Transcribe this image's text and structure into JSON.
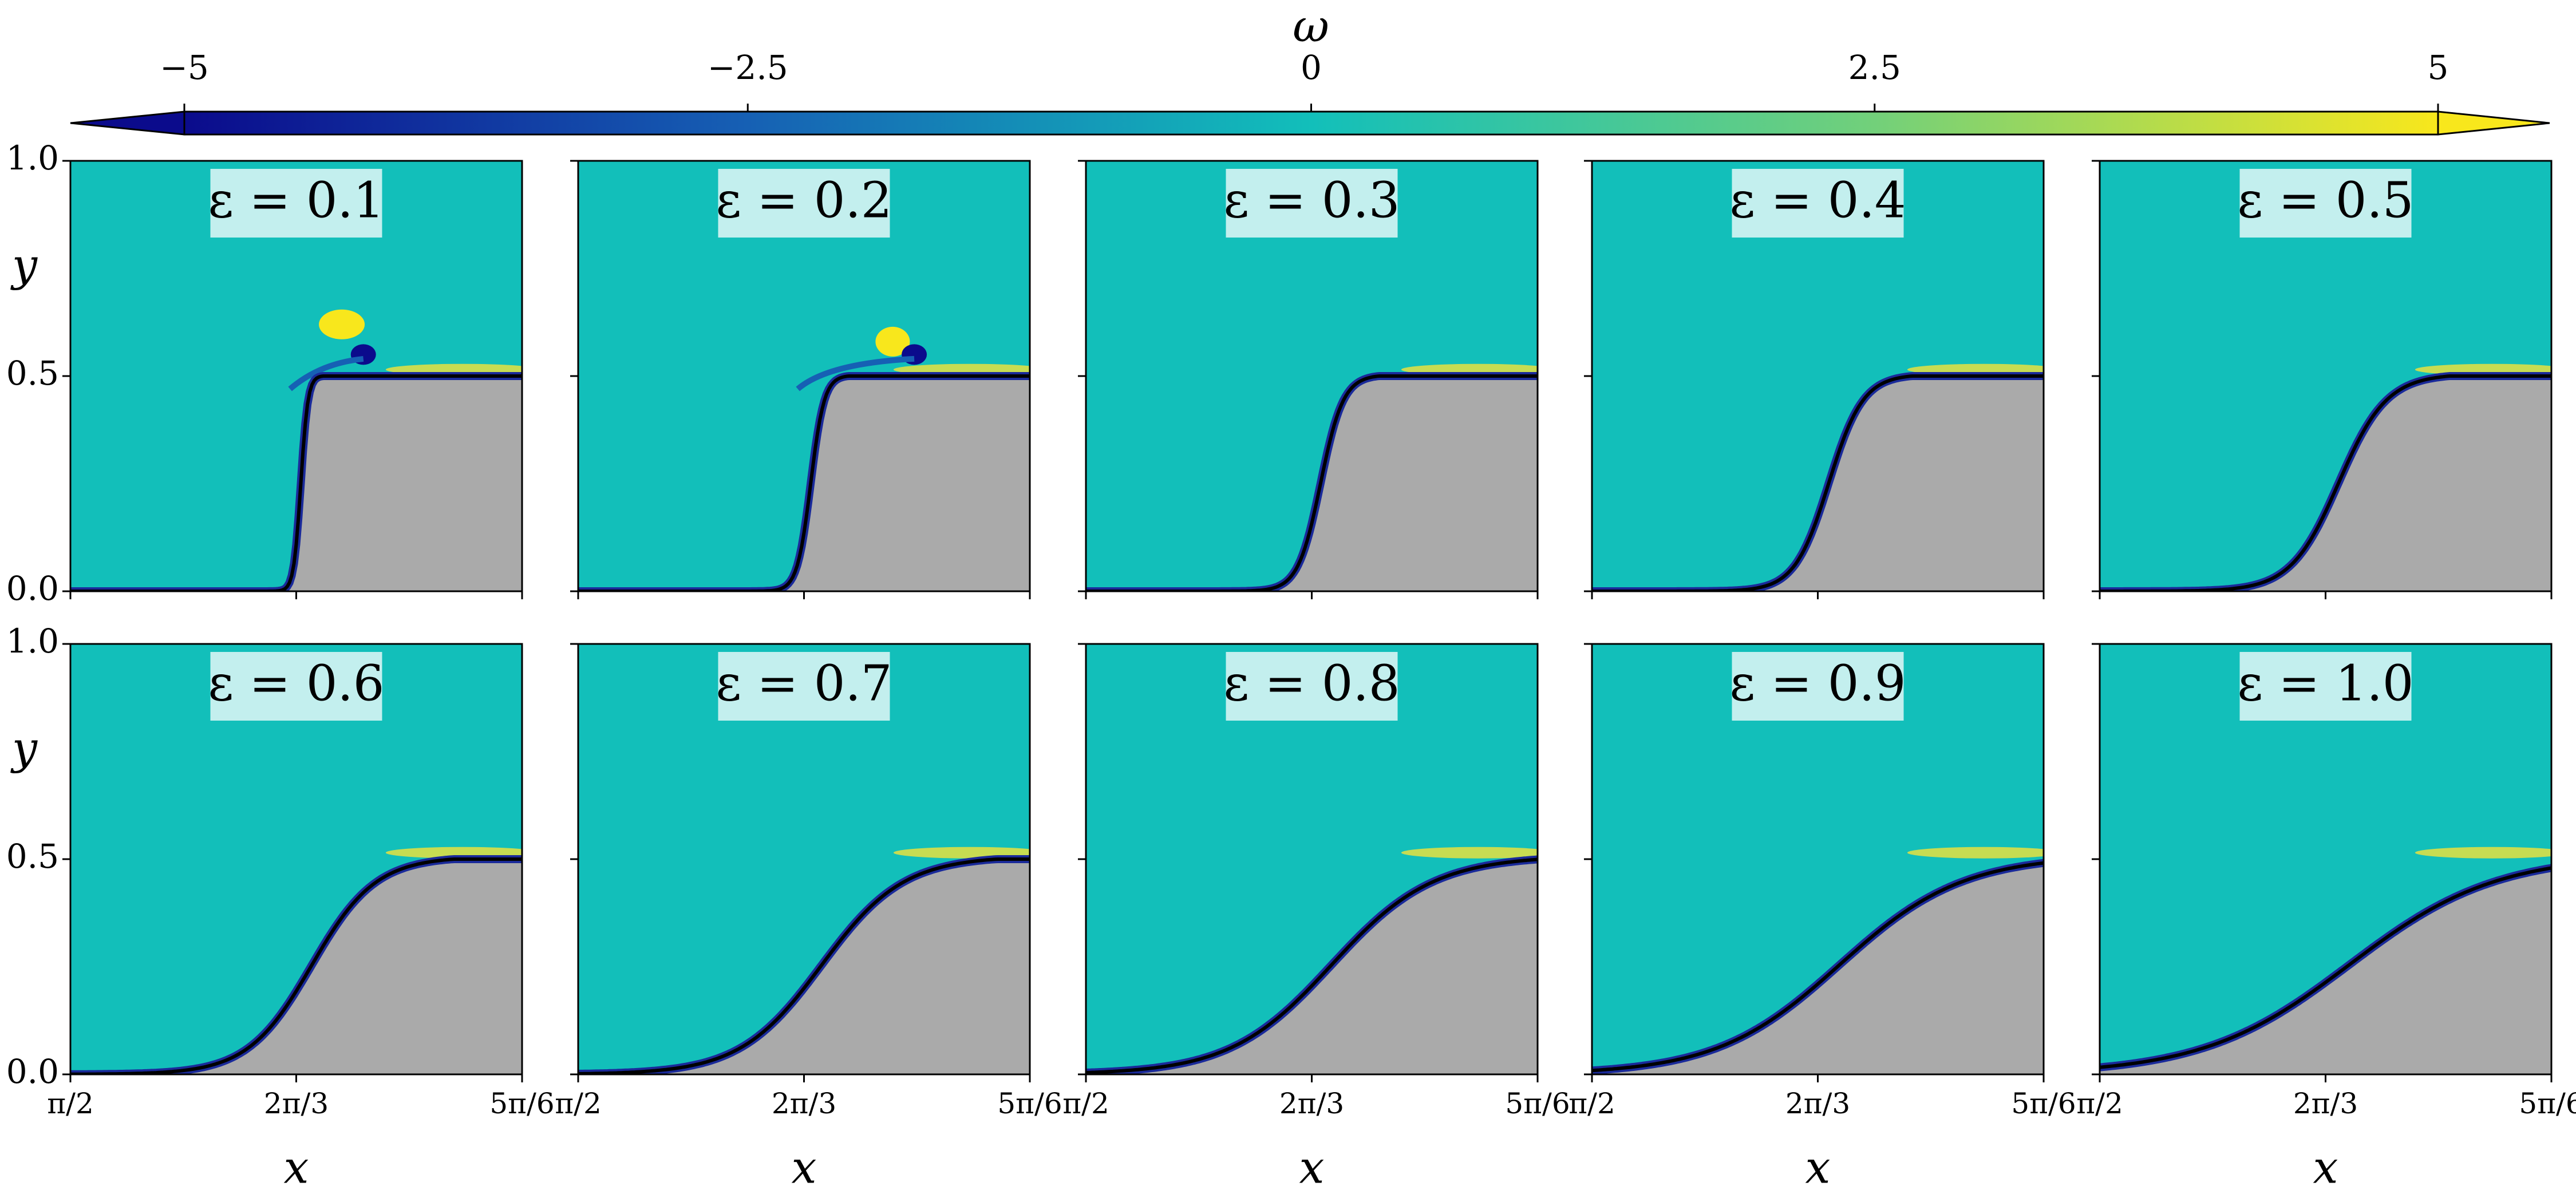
{
  "chart_data": {
    "type": "field-panels",
    "colorbar": {
      "label": "ω",
      "clim": [
        -5,
        5
      ],
      "ticks": [
        {
          "value": -5,
          "label": "−5"
        },
        {
          "value": -2.5,
          "label": "−2.5"
        },
        0,
        2.5,
        5
      ],
      "colormap": [
        "#0b0b8c",
        "#1660b4",
        "#12bfba",
        "#72d07a",
        "#f8e71c"
      ],
      "extend": "both"
    },
    "field_color": "#12bfba",
    "solid_color": "#aaaaaa",
    "xlabel": "x",
    "ylabel": "y",
    "xlim": [
      1.5707963,
      2.6179939
    ],
    "xticks": [
      {
        "value": 1.5707963,
        "label": "π/2"
      },
      {
        "value": 2.0943951,
        "label": "2π/3"
      },
      {
        "value": 2.6179939,
        "label": "5π/6"
      }
    ],
    "ylim": [
      0,
      1
    ],
    "yticks": [
      {
        "value": 0,
        "label": "0.0"
      },
      {
        "value": 0.5,
        "label": "0.5"
      },
      {
        "value": 1,
        "label": "1.0"
      }
    ],
    "panels": [
      {
        "title": "ε = 0.1"
      },
      {
        "title": "ε = 0.2"
      },
      {
        "title": "ε = 0.3"
      },
      {
        "title": "ε = 0.4"
      },
      {
        "title": "ε = 0.5"
      },
      {
        "title": "ε = 0.6"
      },
      {
        "title": "ε = 0.7"
      },
      {
        "title": "ε = 0.8"
      },
      {
        "title": "ε = 0.9"
      },
      {
        "title": "ε = 1.0"
      }
    ]
  }
}
